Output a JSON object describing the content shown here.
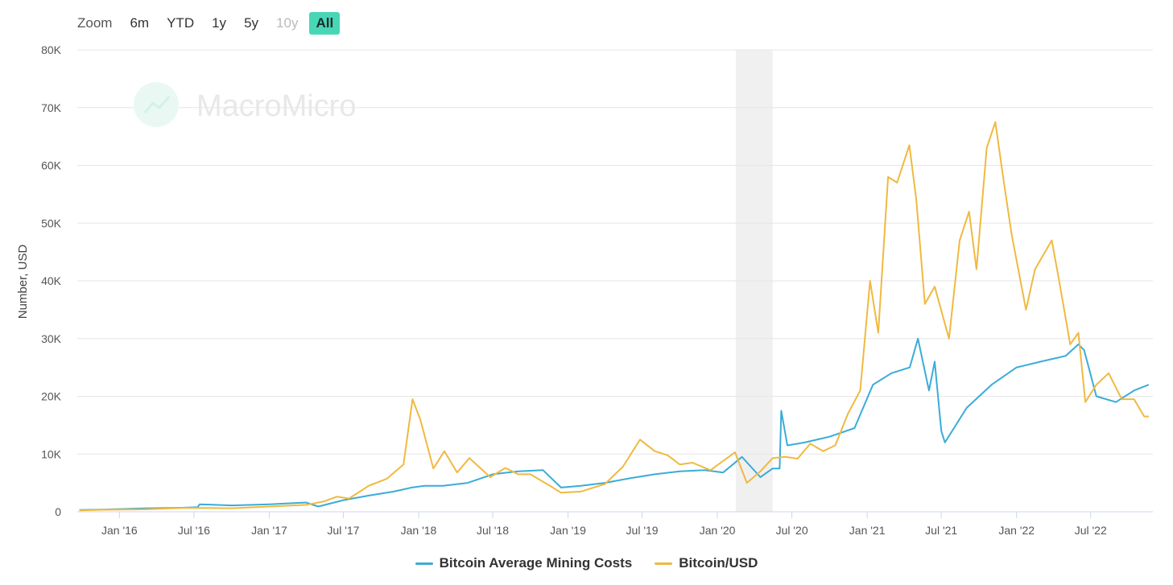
{
  "zoom": {
    "label": "Zoom",
    "buttons": [
      {
        "label": "6m",
        "state": "normal"
      },
      {
        "label": "YTD",
        "state": "normal"
      },
      {
        "label": "1y",
        "state": "normal"
      },
      {
        "label": "5y",
        "state": "normal"
      },
      {
        "label": "10y",
        "state": "disabled"
      },
      {
        "label": "All",
        "state": "active"
      }
    ],
    "active_color": "#47d6b6"
  },
  "watermark": {
    "text": "MacroMicro",
    "icon": "chart-trend-icon"
  },
  "chart_data": {
    "type": "line",
    "title": "",
    "ylabel": "Number, USD",
    "xlabel": "",
    "ylim": [
      0,
      80000
    ],
    "yticks": [
      0,
      10000,
      20000,
      30000,
      40000,
      50000,
      60000,
      70000,
      80000
    ],
    "ytick_labels": [
      "0",
      "10K",
      "20K",
      "30K",
      "40K",
      "50K",
      "60K",
      "70K",
      "80K"
    ],
    "xlim": [
      "2015-09-20",
      "2022-11-30"
    ],
    "xticks": [
      "2016-01-01",
      "2016-07-01",
      "2017-01-01",
      "2017-07-01",
      "2018-01-01",
      "2018-07-01",
      "2019-01-01",
      "2019-07-01",
      "2020-01-01",
      "2020-07-01",
      "2021-01-01",
      "2021-07-01",
      "2022-01-01",
      "2022-07-01"
    ],
    "xtick_labels": [
      "Jan '16",
      "Jul '16",
      "Jan '17",
      "Jul '17",
      "Jan '18",
      "Jul '18",
      "Jan '19",
      "Jul '19",
      "Jan '20",
      "Jul '20",
      "Jan '21",
      "Jul '21",
      "Jan '22",
      "Jul '22"
    ],
    "grid": true,
    "legend_position": "bottom-center",
    "shaded_band": {
      "from": "2020-02-15",
      "to": "2020-05-15",
      "color": "#f0f0f0"
    },
    "series": [
      {
        "name": "Bitcoin Average Mining Costs",
        "color": "#3aacd8",
        "x": [
          "2015-09-25",
          "2015-12-01",
          "2016-03-01",
          "2016-06-01",
          "2016-07-10",
          "2016-07-15",
          "2016-10-01",
          "2017-01-01",
          "2017-03-01",
          "2017-04-01",
          "2017-05-01",
          "2017-07-01",
          "2017-09-01",
          "2017-11-01",
          "2017-12-15",
          "2018-01-15",
          "2018-03-01",
          "2018-05-01",
          "2018-07-01",
          "2018-09-01",
          "2018-11-01",
          "2018-12-15",
          "2019-02-01",
          "2019-04-01",
          "2019-06-01",
          "2019-08-01",
          "2019-10-01",
          "2019-12-01",
          "2020-01-15",
          "2020-03-01",
          "2020-04-15",
          "2020-05-15",
          "2020-06-01",
          "2020-06-05",
          "2020-06-20",
          "2020-08-01",
          "2020-10-01",
          "2020-12-01",
          "2021-01-15",
          "2021-03-01",
          "2021-04-15",
          "2021-05-05",
          "2021-06-01",
          "2021-06-15",
          "2021-07-01",
          "2021-07-10",
          "2021-09-01",
          "2021-11-01",
          "2022-01-01",
          "2022-03-01",
          "2022-05-01",
          "2022-06-01",
          "2022-06-15",
          "2022-07-15",
          "2022-09-01",
          "2022-10-15",
          "2022-11-20"
        ],
        "values": [
          300,
          400,
          600,
          700,
          800,
          1300,
          1100,
          1300,
          1500,
          1600,
          900,
          2000,
          2800,
          3500,
          4200,
          4500,
          4500,
          5000,
          6500,
          7000,
          7200,
          4200,
          4500,
          5000,
          5800,
          6500,
          7000,
          7200,
          6800,
          9500,
          6000,
          7500,
          7500,
          17500,
          11500,
          12000,
          13000,
          14500,
          22000,
          24000,
          25000,
          30000,
          21000,
          26000,
          14000,
          12000,
          18000,
          22000,
          25000,
          26000,
          27000,
          29000,
          28000,
          20000,
          19000,
          21000,
          22000
        ]
      },
      {
        "name": "Bitcoin/USD",
        "color": "#f0b940",
        "x": [
          "2015-09-25",
          "2015-12-01",
          "2016-03-01",
          "2016-06-01",
          "2016-07-01",
          "2016-10-01",
          "2017-01-01",
          "2017-03-01",
          "2017-04-01",
          "2017-05-15",
          "2017-06-15",
          "2017-07-15",
          "2017-09-01",
          "2017-10-15",
          "2017-11-25",
          "2017-12-17",
          "2018-01-05",
          "2018-02-06",
          "2018-03-05",
          "2018-04-05",
          "2018-05-05",
          "2018-06-25",
          "2018-08-01",
          "2018-09-01",
          "2018-10-01",
          "2018-11-20",
          "2018-12-15",
          "2019-02-01",
          "2019-04-01",
          "2019-05-15",
          "2019-06-26",
          "2019-08-01",
          "2019-09-01",
          "2019-10-01",
          "2019-11-01",
          "2019-12-15",
          "2020-02-13",
          "2020-03-13",
          "2020-04-15",
          "2020-05-15",
          "2020-06-15",
          "2020-07-15",
          "2020-08-15",
          "2020-09-15",
          "2020-10-15",
          "2020-11-15",
          "2020-12-15",
          "2021-01-08",
          "2021-01-28",
          "2021-02-21",
          "2021-03-15",
          "2021-04-14",
          "2021-05-01",
          "2021-05-22",
          "2021-06-15",
          "2021-07-20",
          "2021-08-15",
          "2021-09-07",
          "2021-09-25",
          "2021-10-20",
          "2021-11-10",
          "2021-12-01",
          "2021-12-20",
          "2022-01-24",
          "2022-02-15",
          "2022-03-28",
          "2022-04-15",
          "2022-05-12",
          "2022-06-01",
          "2022-06-18",
          "2022-07-15",
          "2022-08-14",
          "2022-09-15",
          "2022-10-15",
          "2022-11-09",
          "2022-11-20"
        ],
        "values": [
          230,
          360,
          420,
          650,
          670,
          620,
          900,
          1100,
          1200,
          1800,
          2600,
          2300,
          4500,
          5700,
          8200,
          19500,
          16000,
          7500,
          10500,
          6800,
          9300,
          6000,
          7600,
          6500,
          6500,
          4400,
          3300,
          3500,
          4800,
          7800,
          12500,
          10500,
          9800,
          8200,
          8500,
          7200,
          10300,
          5000,
          7000,
          9300,
          9500,
          9200,
          11800,
          10500,
          11500,
          17000,
          21000,
          40000,
          31000,
          58000,
          57000,
          63500,
          54000,
          36000,
          39000,
          30000,
          47000,
          52000,
          42000,
          63000,
          67500,
          57000,
          48000,
          35000,
          42000,
          47000,
          40000,
          29000,
          31000,
          19000,
          22000,
          24000,
          19500,
          19500,
          16500,
          16500
        ]
      }
    ]
  }
}
